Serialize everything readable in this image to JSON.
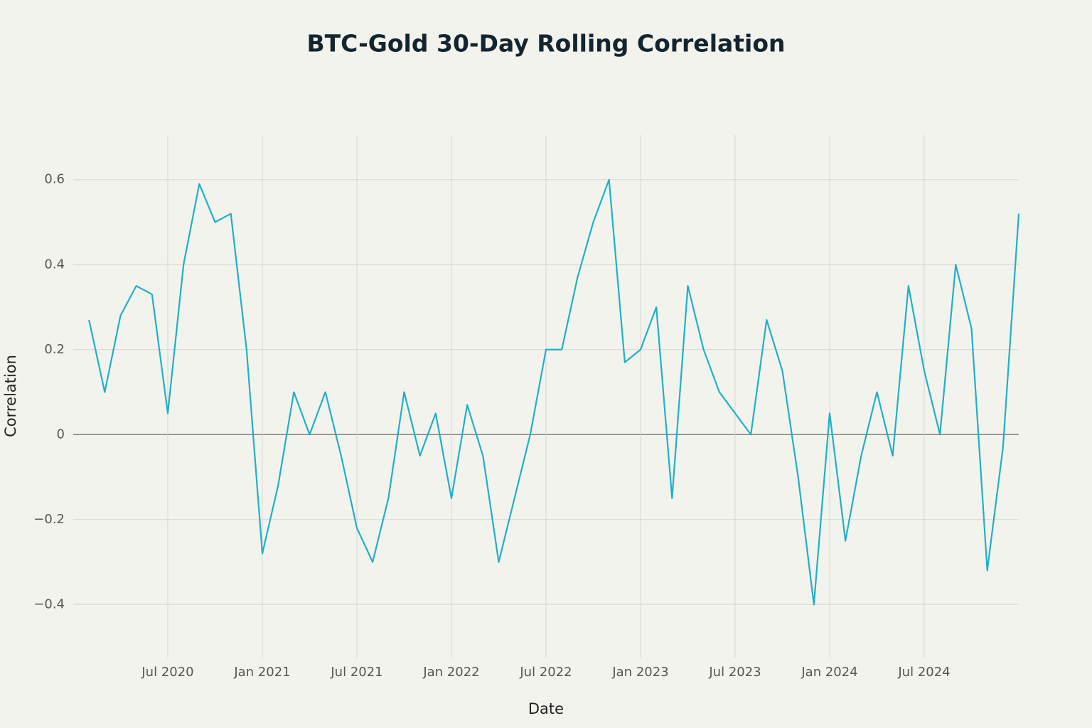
{
  "chart_data": {
    "type": "line",
    "title": "BTC-Gold 30-Day Rolling Correlation",
    "x_label": "Date",
    "y_label": "Correlation",
    "x": [
      "2020-02",
      "2020-03",
      "2020-04",
      "2020-05",
      "2020-06",
      "2020-07",
      "2020-08",
      "2020-09",
      "2020-10",
      "2020-11",
      "2020-12",
      "2021-01",
      "2021-02",
      "2021-03",
      "2021-04",
      "2021-05",
      "2021-06",
      "2021-07",
      "2021-08",
      "2021-09",
      "2021-10",
      "2021-11",
      "2021-12",
      "2022-01",
      "2022-02",
      "2022-03",
      "2022-04",
      "2022-05",
      "2022-06",
      "2022-07",
      "2022-08",
      "2022-09",
      "2022-10",
      "2022-11",
      "2022-12",
      "2023-01",
      "2023-02",
      "2023-03",
      "2023-04",
      "2023-05",
      "2023-06",
      "2023-07",
      "2023-08",
      "2023-09",
      "2023-10",
      "2023-11",
      "2023-12",
      "2024-01",
      "2024-02",
      "2024-03",
      "2024-04",
      "2024-05",
      "2024-06",
      "2024-07",
      "2024-08",
      "2024-09",
      "2024-10",
      "2024-11",
      "2024-12",
      "2025-01"
    ],
    "series": [
      {
        "name": "Correlation",
        "color": "#1fb0c8",
        "values": [
          0.27,
          0.1,
          0.28,
          0.35,
          0.33,
          0.05,
          0.4,
          0.59,
          0.5,
          0.52,
          0.2,
          -0.28,
          -0.12,
          0.1,
          0.0,
          0.1,
          -0.05,
          -0.22,
          -0.3,
          -0.15,
          0.1,
          -0.05,
          0.05,
          -0.15,
          0.07,
          -0.05,
          -0.3,
          -0.15,
          0.0,
          0.2,
          0.2,
          0.37,
          0.5,
          0.6,
          0.17,
          0.2,
          0.3,
          -0.15,
          0.35,
          0.2,
          0.1,
          0.05,
          0.0,
          0.27,
          0.15,
          -0.1,
          -0.4,
          0.05,
          -0.25,
          -0.05,
          0.1,
          -0.05,
          0.35,
          0.15,
          0.0,
          0.4,
          0.25,
          -0.32,
          -0.03,
          0.52
        ]
      }
    ],
    "xlim": [
      "2020-01",
      "2025-01"
    ],
    "xticks": [
      {
        "value": "2020-07",
        "label": "Jul 2020"
      },
      {
        "value": "2021-01",
        "label": "Jan 2021"
      },
      {
        "value": "2021-07",
        "label": "Jul 2021"
      },
      {
        "value": "2022-01",
        "label": "Jan 2022"
      },
      {
        "value": "2022-07",
        "label": "Jul 2022"
      },
      {
        "value": "2023-01",
        "label": "Jan 2023"
      },
      {
        "value": "2023-07",
        "label": "Jul 2023"
      },
      {
        "value": "2024-01",
        "label": "Jan 2024"
      },
      {
        "value": "2024-07",
        "label": "Jul 2024"
      }
    ],
    "ylim": [
      -0.525,
      0.705
    ],
    "yticks": [
      {
        "value": -0.4,
        "label": "−0.4"
      },
      {
        "value": -0.2,
        "label": "−0.2"
      },
      0,
      0.2,
      0.4,
      0.6
    ],
    "grid": true
  }
}
